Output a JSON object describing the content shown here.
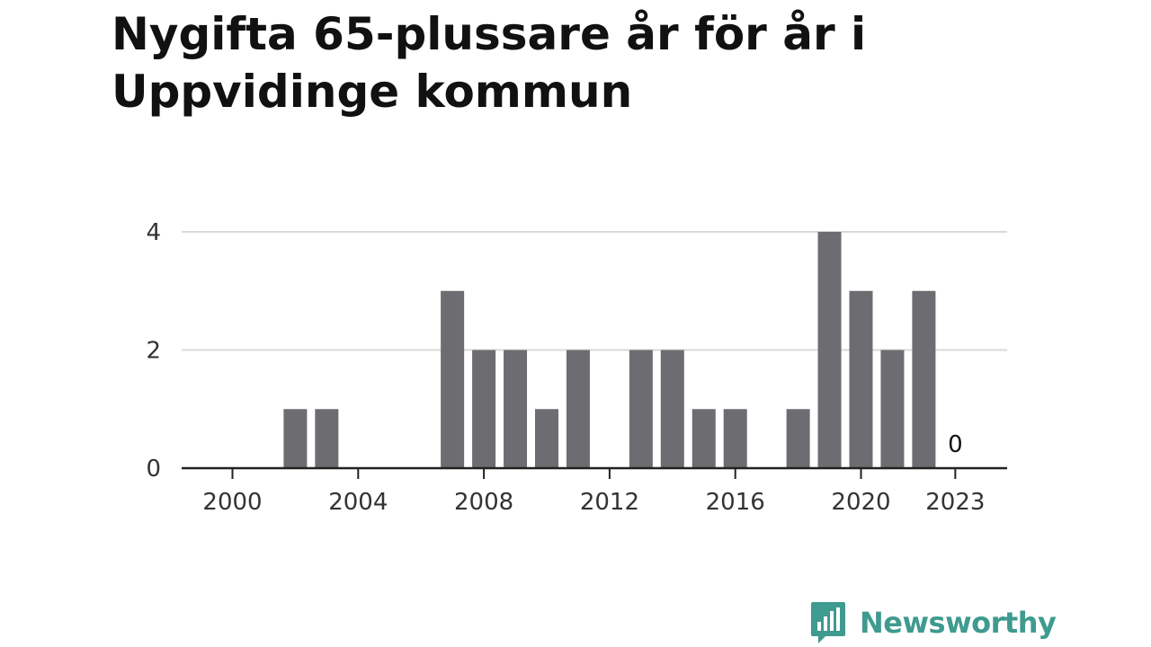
{
  "chart_data": {
    "type": "bar",
    "title": "Nygifta 65-plussare år för år i Uppvidinge kommun",
    "xlabel": "",
    "ylabel": "",
    "x": [
      2000,
      2001,
      2002,
      2003,
      2004,
      2005,
      2006,
      2007,
      2008,
      2009,
      2010,
      2011,
      2012,
      2013,
      2014,
      2015,
      2016,
      2017,
      2018,
      2019,
      2020,
      2021,
      2022,
      2023
    ],
    "values": [
      0,
      0,
      1,
      1,
      0,
      0,
      0,
      3,
      2,
      2,
      1,
      2,
      0,
      2,
      2,
      1,
      1,
      0,
      1,
      4,
      3,
      2,
      3,
      0
    ],
    "xticks": [
      "2000",
      "2004",
      "2008",
      "2012",
      "2016",
      "2020",
      "2023"
    ],
    "yticks": [
      "0",
      "2",
      "4"
    ],
    "ylim": [
      0,
      4
    ],
    "grid": true,
    "data_labels": [
      {
        "x": 2023,
        "text": "0"
      }
    ],
    "bar_color": "#6d6c71",
    "grid_color": "#d9d9d9",
    "axis_color": "#222222"
  },
  "brand": {
    "name": "Newsworthy",
    "icon": "newsworthy-logo-icon",
    "color": "#3f9a8f"
  }
}
